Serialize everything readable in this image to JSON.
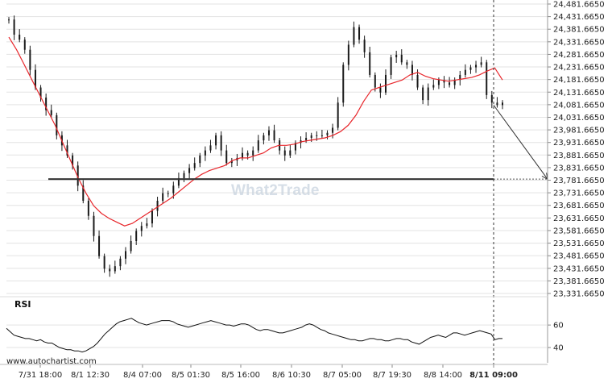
{
  "watermark": "What2Trade",
  "credit": "www.autochartist.com",
  "chart_data": {
    "type": "candlestick",
    "price_ticks": [
      "24,481.6650",
      "24,431.6650",
      "24,381.6650",
      "24,331.6650",
      "24,281.6650",
      "24,231.6650",
      "24,181.6650",
      "24,131.6650",
      "24,081.6650",
      "24,031.6650",
      "23,981.6650",
      "23,931.6650",
      "23,881.6650",
      "23,831.6650",
      "23,781.6650",
      "23,731.6650",
      "23,681.6650",
      "23,631.6650",
      "23,581.6650",
      "23,531.6650",
      "23,481.6650",
      "23,431.6650",
      "23,381.6650",
      "23,331.6650"
    ],
    "ylim": [
      23331.665,
      24481.665
    ],
    "x_ticks": [
      "7/31 18:00",
      "8/1 12:30",
      "8/4 07:00",
      "8/5 01:30",
      "8/5 16:00",
      "8/6 10:30",
      "8/7 05:00",
      "8/7 19:30",
      "8/8 14:00",
      "8/11 09:00"
    ],
    "support_level": 23786,
    "projection": {
      "from": 24080,
      "to": 23786
    },
    "series": [
      {
        "name": "price",
        "values": [
          24420,
          24360,
          24340,
          24300,
          24220,
          24150,
          24110,
          24060,
          24040,
          23960,
          23920,
          23880,
          23840,
          23760,
          23700,
          23640,
          23560,
          23480,
          23430,
          23420,
          23440,
          23470,
          23500,
          23540,
          23580,
          23600,
          23610,
          23660,
          23700,
          23730,
          23730,
          23760,
          23790,
          23810,
          23830,
          23850,
          23880,
          23900,
          23920,
          23960,
          23900,
          23850,
          23860,
          23870,
          23890,
          23880,
          23900,
          23940,
          23960,
          23980,
          23940,
          23900,
          23880,
          23900,
          23930,
          23940,
          23950,
          23960,
          23960,
          23960,
          23970,
          23990,
          24090,
          24240,
          24320,
          24390,
          24340,
          24290,
          24200,
          24150,
          24130,
          24200,
          24270,
          24280,
          24250,
          24240,
          24200,
          24150,
          24100,
          24150,
          24160,
          24180,
          24170,
          24160,
          24180,
          24200,
          24220,
          24230,
          24240,
          24250,
          24120,
          24090,
          24080,
          24090
        ]
      },
      {
        "name": "ma",
        "values": [
          24350,
          24300,
          24240,
          24180,
          24120,
          24060,
          24000,
          23930,
          23860,
          23790,
          23730,
          23680,
          23650,
          23630,
          23615,
          23600,
          23610,
          23630,
          23650,
          23670,
          23690,
          23710,
          23735,
          23760,
          23785,
          23805,
          23820,
          23830,
          23840,
          23860,
          23870,
          23870,
          23880,
          23890,
          23910,
          23920,
          23920,
          23925,
          23935,
          23940,
          23945,
          23950,
          23960,
          23975,
          24000,
          24040,
          24095,
          24140,
          24150,
          24160,
          24170,
          24180,
          24200,
          24210,
          24195,
          24185,
          24180,
          24175,
          24180,
          24185,
          24190,
          24200,
          24215,
          24228,
          24180
        ]
      },
      {
        "name": "RSI",
        "values": [
          57,
          54,
          51,
          50,
          49,
          48,
          48,
          47,
          46,
          47,
          45,
          44,
          44,
          42,
          40,
          39,
          38,
          38,
          37,
          37,
          36,
          37,
          39,
          41,
          44,
          48,
          52,
          55,
          58,
          61,
          63,
          64,
          65,
          66,
          64,
          62,
          61,
          60,
          61,
          62,
          63,
          64,
          64,
          64,
          63,
          61,
          60,
          59,
          58,
          59,
          60,
          61,
          62,
          63,
          64,
          63,
          62,
          61,
          60,
          60,
          59,
          60,
          61,
          61,
          60,
          58,
          56,
          55,
          56,
          56,
          55,
          54,
          53,
          53,
          54,
          55,
          56,
          57,
          58,
          60,
          61,
          60,
          58,
          56,
          55,
          53,
          52,
          51,
          50,
          49,
          48,
          47,
          47,
          46,
          46,
          47,
          48,
          48,
          47,
          47,
          46,
          46,
          47,
          48,
          48,
          47,
          47,
          45,
          44,
          43,
          45,
          47,
          49,
          50,
          51,
          50,
          49,
          51,
          53,
          53,
          52,
          51,
          52,
          53,
          54,
          55,
          54,
          53,
          52,
          47,
          48,
          48
        ]
      }
    ],
    "rsi_ticks": [
      "60",
      "40"
    ],
    "rsi_label": "RSI",
    "rsi_ylim": [
      30,
      73
    ],
    "colors": {
      "candle": "#1a1a1a",
      "ma": "#e8262b",
      "support": "#333333",
      "grid": "#e3e3e3",
      "arrow": "#333333"
    }
  }
}
